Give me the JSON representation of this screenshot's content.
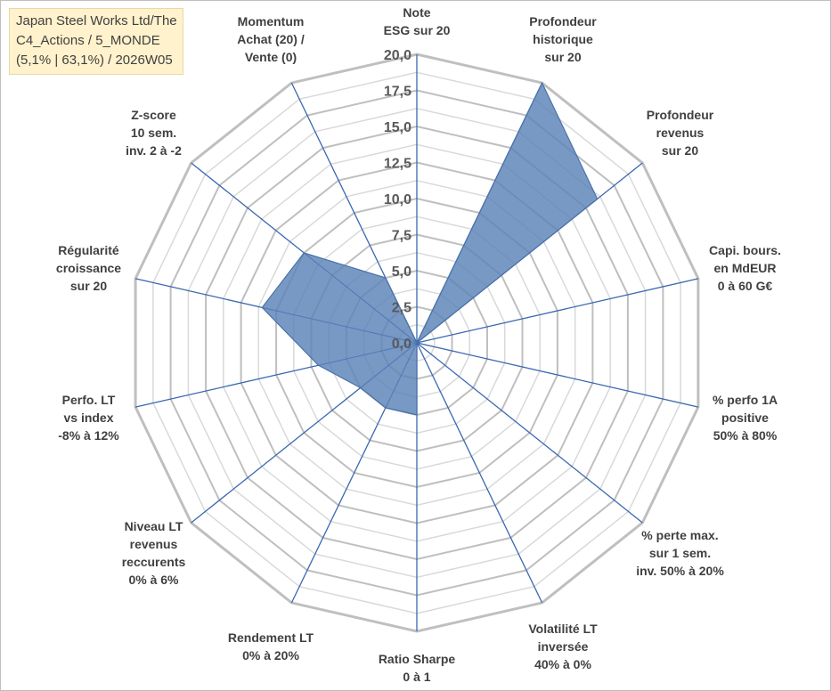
{
  "chart_data": {
    "type": "radar",
    "title_lines": [
      "Japan Steel Works Ltd/The",
      "C4_Actions / 5_MONDE",
      "(5,1% | 63,1%) / 2026W05"
    ],
    "rmax": 20,
    "ticks": [
      "0,0",
      "2,5",
      "5,0",
      "7,5",
      "10,0",
      "12,5",
      "15,0",
      "17,5",
      "20,0"
    ],
    "tick_values": [
      0,
      2.5,
      5,
      7.5,
      10,
      12.5,
      15,
      17.5,
      20
    ],
    "axes": [
      {
        "lines": [
          "Note",
          "ESG sur 20"
        ]
      },
      {
        "lines": [
          "Profondeur",
          "historique",
          "sur 20"
        ]
      },
      {
        "lines": [
          "Profondeur",
          "revenus",
          "sur 20"
        ]
      },
      {
        "lines": [
          "Capi. bours.",
          "en MdEUR",
          "0 à 60 G€"
        ]
      },
      {
        "lines": [
          "% perfo 1A",
          "positive",
          "50% à 80%"
        ]
      },
      {
        "lines": [
          "% perte max.",
          "sur 1 sem.",
          "inv. 50% à 20%"
        ]
      },
      {
        "lines": [
          "Volatilité LT",
          "inversée",
          "40% à 0%"
        ]
      },
      {
        "lines": [
          "Ratio Sharpe",
          "0 à 1"
        ]
      },
      {
        "lines": [
          "Rendement LT",
          "0% à 20%"
        ]
      },
      {
        "lines": [
          "Niveau LT",
          "revenus",
          "reccurents",
          "0% à 6%"
        ]
      },
      {
        "lines": [
          "Perfo. LT",
          "vs index",
          "-8% à 12%"
        ]
      },
      {
        "lines": [
          "Régularité",
          "croissance",
          "sur 20"
        ]
      },
      {
        "lines": [
          "Z-score",
          "10 sem.",
          "inv. 2 à -2"
        ]
      },
      {
        "lines": [
          "Momentum",
          "Achat (20) /",
          "Vente (0)"
        ]
      }
    ],
    "series": [
      {
        "name": "Japan Steel Works Ltd/The",
        "values": [
          0,
          20,
          16,
          0,
          3,
          0,
          0,
          5,
          5,
          5,
          7,
          11,
          10,
          5
        ],
        "color": "#5b82b8"
      }
    ]
  }
}
